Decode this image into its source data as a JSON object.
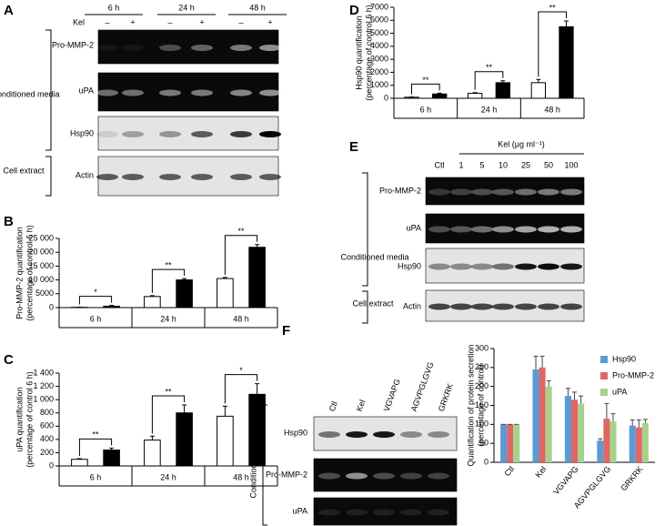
{
  "panels": [
    "A",
    "B",
    "C",
    "D",
    "E",
    "F"
  ],
  "blots": {
    "A": {
      "times": [
        "6 h",
        "24 h",
        "48 h"
      ],
      "kel": "Kel",
      "signs": [
        "–",
        "+",
        "–",
        "+",
        "–",
        "+"
      ],
      "rows": [
        "Pro-MMP-2",
        "uPA",
        "Hsp90",
        "Actin"
      ],
      "groups": [
        "Conditioned media",
        "Cell extract"
      ]
    },
    "E": {
      "kel": "Kel (μg ml⁻¹)",
      "lanes": [
        "Ctl",
        "1",
        "5",
        "10",
        "25",
        "50",
        "100"
      ],
      "rows": [
        "Pro-MMP-2",
        "uPA",
        "Hsp90",
        "Actin"
      ],
      "groups": [
        "Conditioned media",
        "Cell extract"
      ]
    },
    "F": {
      "lanes": [
        "Ctl",
        "Kel",
        "VGVAPG",
        "AGVPGLGVG",
        "GRKRK"
      ],
      "rows": [
        "Hsp90",
        "Pro-MMP-2",
        "uPA"
      ],
      "group": "Conditioned media"
    }
  },
  "chart_data": [
    {
      "type": "bar",
      "y_label": [
        "Pro-MMP-2 quantification",
        "(percentage of control 6 h)"
      ],
      "categories": [
        "6 h",
        "24 h",
        "48 h"
      ],
      "series": [
        {
          "color": "#ffffff",
          "values": [
            100,
            4000,
            10500
          ],
          "errors": [
            50,
            300,
            400
          ]
        },
        {
          "color": "#000000",
          "values": [
            500,
            10000,
            21800
          ],
          "errors": [
            300,
            500,
            1000
          ]
        }
      ],
      "significance": [
        "*",
        "**",
        "**"
      ],
      "ylim": [
        0,
        25000
      ],
      "yticks": [
        0,
        5000,
        {
          "value": 10000,
          "label": "10 000"
        },
        {
          "value": 15000,
          "label": "15 000"
        },
        {
          "value": 20000,
          "label": "20 000"
        },
        {
          "value": 25000,
          "label": "25 000"
        }
      ]
    },
    {
      "type": "bar",
      "y_label": [
        "uPA quantification",
        "(percentage of control 6 h)"
      ],
      "categories": [
        "6 h",
        "24 h",
        "48 h"
      ],
      "series": [
        {
          "color": "#ffffff",
          "values": [
            100,
            390,
            750
          ],
          "errors": [
            10,
            60,
            150
          ]
        },
        {
          "color": "#000000",
          "values": [
            240,
            800,
            1080
          ],
          "errors": [
            30,
            120,
            160
          ]
        }
      ],
      "significance": [
        "**",
        "**",
        "*"
      ],
      "ylim": [
        0,
        1400
      ],
      "yticks": [
        0,
        200,
        400,
        600,
        800,
        {
          "value": 1000,
          "label": "1 000"
        },
        {
          "value": 1200,
          "label": "1 200"
        },
        {
          "value": 1400,
          "label": "1 400"
        }
      ]
    },
    {
      "type": "bar",
      "y_label": [
        "Hsp90 quantification",
        "(percentage of control 6 h)"
      ],
      "categories": [
        "6 h",
        "24 h",
        "48 h"
      ],
      "series": [
        {
          "color": "#ffffff",
          "values": [
            80,
            380,
            1200
          ],
          "errors": [
            20,
            60,
            250
          ]
        },
        {
          "color": "#000000",
          "values": [
            330,
            1200,
            5500
          ],
          "errors": [
            60,
            150,
            450
          ]
        }
      ],
      "significance": [
        "**",
        "**",
        "**"
      ],
      "ylim": [
        0,
        7000
      ],
      "yticks": [
        0,
        1000,
        2000,
        3000,
        4000,
        5000,
        6000,
        7000
      ]
    },
    {
      "type": "bar",
      "y_label": [
        "Quantification of protein secretion",
        "(percentage of control)"
      ],
      "categories": [
        "Ctl",
        "Kel",
        "VGVAPG",
        "AGVPGLGVG",
        "GRKRK"
      ],
      "series": [
        {
          "name": "Hsp90",
          "color": "#5b9bd5",
          "values": [
            100,
            245,
            175,
            57,
            97
          ],
          "errors": [
            0,
            35,
            20,
            5,
            15
          ]
        },
        {
          "name": "Pro-MMP-2",
          "color": "#e06666",
          "values": [
            100,
            250,
            165,
            115,
            92
          ],
          "errors": [
            0,
            30,
            20,
            40,
            20
          ]
        },
        {
          "name": "uPA",
          "color": "#a9d18e",
          "values": [
            100,
            200,
            155,
            108,
            103
          ],
          "errors": [
            0,
            15,
            20,
            20,
            10
          ]
        }
      ],
      "legend": "top-right",
      "ylim": [
        0,
        300
      ],
      "yticks": [
        0,
        50,
        100,
        150,
        200,
        250,
        300
      ]
    }
  ]
}
